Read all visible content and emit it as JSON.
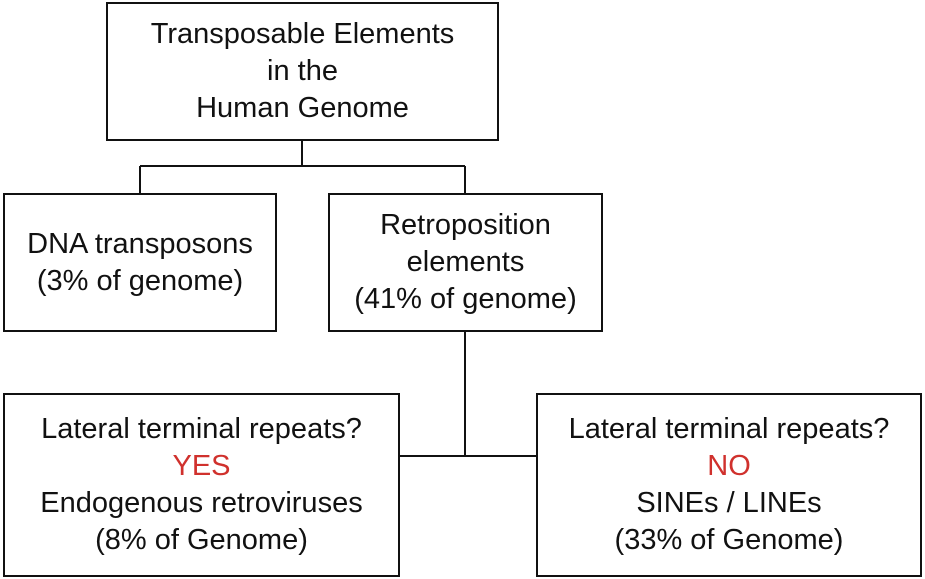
{
  "diagram": {
    "root": {
      "lines": [
        "Transposable Elements",
        "in the",
        "Human Genome"
      ]
    },
    "dna_transposons": {
      "lines": [
        "DNA transposons",
        "(3% of genome)"
      ]
    },
    "retroposition": {
      "lines": [
        "Retroposition",
        "elements",
        "(41% of genome)"
      ]
    },
    "ltr_yes": {
      "question": "Lateral terminal repeats?",
      "answer": "YES",
      "name": "Endogenous retroviruses",
      "share": "(8% of Genome)"
    },
    "ltr_no": {
      "question": "Lateral terminal repeats?",
      "answer": "NO",
      "name": "SINEs / LINEs",
      "share": "(33% of Genome)"
    }
  },
  "colors": {
    "line": "#111111",
    "answer_accent": "#d0312d",
    "background": "#ffffff"
  }
}
